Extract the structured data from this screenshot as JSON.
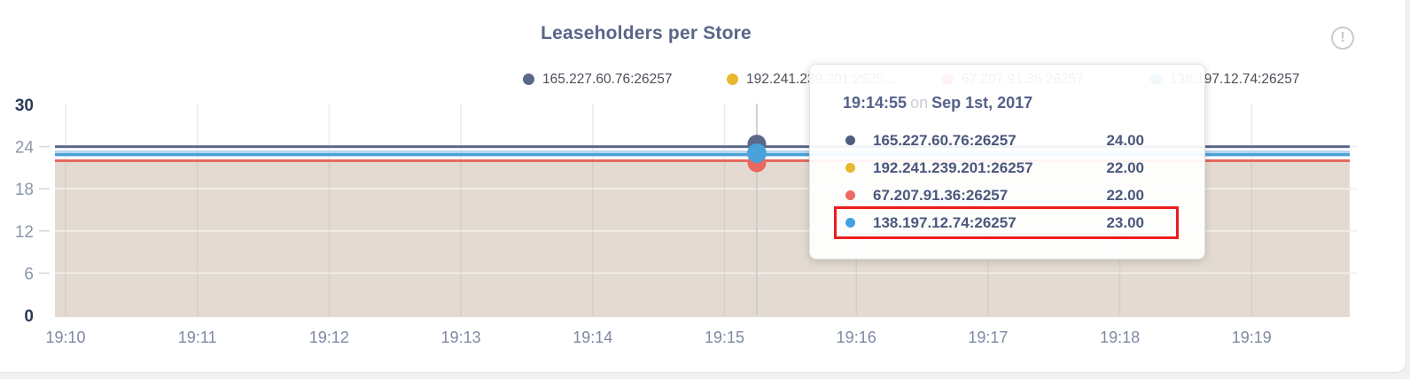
{
  "header": {
    "title": "Leaseholders per Store",
    "info_icon": "!"
  },
  "chart_data": {
    "type": "area",
    "title": "Leaseholders per Store",
    "x_ticks": [
      "19:10",
      "19:11",
      "19:12",
      "19:13",
      "19:14",
      "19:15",
      "19:16",
      "19:17",
      "19:18",
      "19:19"
    ],
    "y_ticks": [
      30,
      24,
      18,
      12,
      6,
      0
    ],
    "ylim": [
      0,
      30
    ],
    "grid": true,
    "legend_position": "top",
    "area_fill_color": "#e3dbd2",
    "series": [
      {
        "name": "165.227.60.76:26257",
        "legend_label": "165.227.60.76:26257",
        "color": "#5b688a",
        "value": 24
      },
      {
        "name": "192.241.239.201:26257",
        "legend_label": "192.241.239.201:2625…",
        "color": "#e9b72e",
        "value": 22
      },
      {
        "name": "67.207.91.36:26257",
        "legend_label": "67.207.91.36:26257",
        "color": "#e8685f",
        "value": 22
      },
      {
        "name": "138.197.12.74:26257",
        "legend_label": "138.197.12.74:26257",
        "color": "#4aa2da",
        "value": 23
      }
    ],
    "hovered_series": "138.197.12.74:26257"
  },
  "tooltip": {
    "time": "19:14:55",
    "connector": "on",
    "date": "Sep 1st, 2017",
    "rows": [
      {
        "series": "165.227.60.76:26257",
        "value": "24.00",
        "color": "#4f5e85"
      },
      {
        "series": "192.241.239.201:26257",
        "value": "22.00",
        "color": "#e9b72e"
      },
      {
        "series": "67.207.91.36:26257",
        "value": "22.00",
        "color": "#ef6a63"
      },
      {
        "series": "138.197.12.74:26257",
        "value": "23.00",
        "color": "#42a3e0"
      }
    ],
    "highlighted_row": 3,
    "highlight_color": "#ee1c1c"
  }
}
